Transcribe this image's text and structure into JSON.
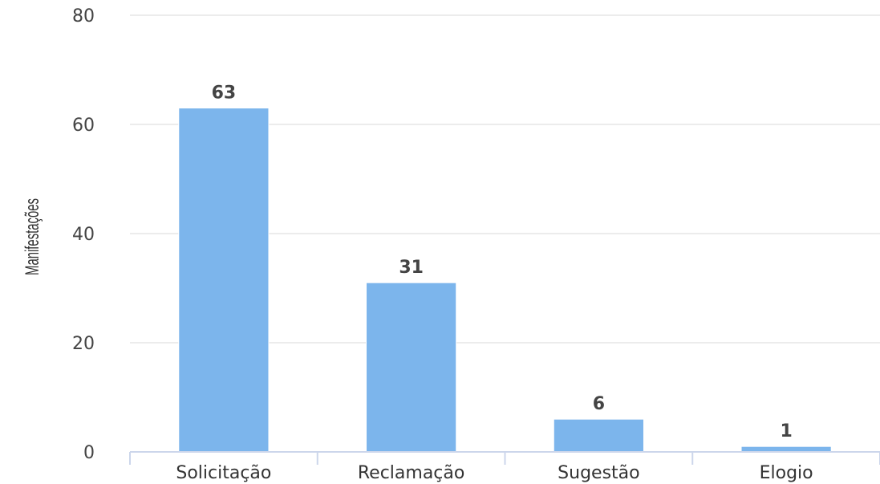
{
  "chart_data": {
    "type": "bar",
    "categories": [
      "Solicitação",
      "Reclamação",
      "Sugestão",
      "Elogio"
    ],
    "values": [
      63,
      31,
      6,
      1
    ],
    "data_labels": [
      "63",
      "31",
      "6",
      "1"
    ],
    "title": "",
    "xlabel": "",
    "ylabel": "Manifestações",
    "ylim": [
      0,
      80
    ],
    "yticks": [
      0,
      20,
      40,
      60,
      80
    ],
    "ytick_labels": [
      "0",
      "20",
      "40",
      "60",
      "80"
    ],
    "grid": true,
    "bar_color": "#7cb5ec",
    "grid_color": "#e6e6e6",
    "axis_color": "#ccd6eb"
  }
}
